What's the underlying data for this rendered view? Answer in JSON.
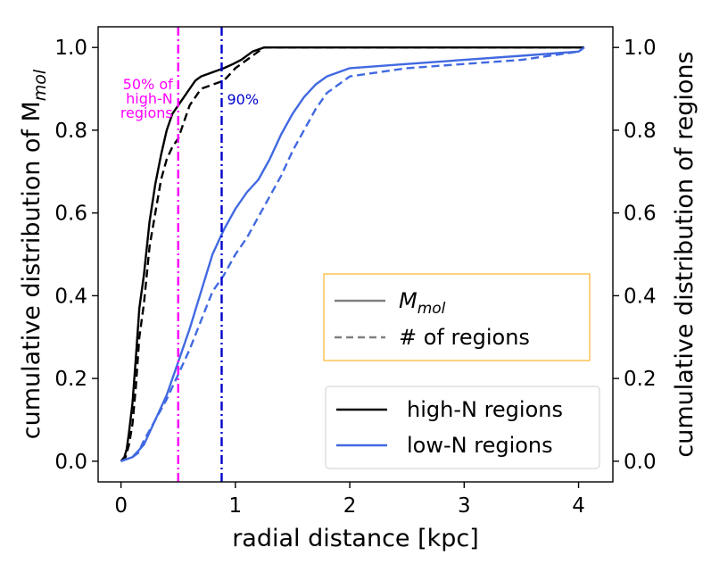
{
  "chart_data": {
    "type": "line",
    "xlabel": "radial distance [kpc]",
    "ylabel_left_text": "cumulative distribution of M",
    "ylabel_left_subscript": "mol",
    "ylabel_right": "cumulative distribution of regions",
    "xlim": [
      -0.2,
      4.3
    ],
    "ylim": [
      -0.05,
      1.05
    ],
    "x_ticks": [
      0,
      1,
      2,
      3,
      4
    ],
    "x_tick_labels": [
      "0",
      "1",
      "2",
      "3",
      "4"
    ],
    "y_ticks": [
      0.0,
      0.2,
      0.4,
      0.6,
      0.8,
      1.0
    ],
    "y_tick_labels": [
      "0.0",
      "0.2",
      "0.4",
      "0.6",
      "0.8",
      "1.0"
    ],
    "grid": false,
    "vlines": [
      {
        "x": 0.5,
        "color": "#ff00ff",
        "style": "dashdot",
        "label": "50% of\nhigh-N\nregions",
        "label_lines": [
          "50% of",
          "high-N",
          "regions"
        ]
      },
      {
        "x": 0.88,
        "color": "#0000cc",
        "style": "dashdot",
        "label": "90%",
        "label_lines": [
          "90%"
        ]
      }
    ],
    "series": [
      {
        "name": "high-N regions",
        "group": "high-N",
        "measure": "M_mol",
        "color": "#000000",
        "dash": "solid",
        "x": [
          0.0,
          0.03,
          0.05,
          0.07,
          0.1,
          0.13,
          0.16,
          0.2,
          0.25,
          0.3,
          0.35,
          0.4,
          0.45,
          0.5,
          0.55,
          0.6,
          0.65,
          0.7,
          0.8,
          0.9,
          0.98,
          1.05,
          1.15,
          1.25,
          1.3,
          1.5,
          2.0,
          3.0,
          4.0,
          4.05
        ],
        "y": [
          0.0,
          0.01,
          0.03,
          0.07,
          0.14,
          0.25,
          0.37,
          0.45,
          0.58,
          0.67,
          0.74,
          0.8,
          0.84,
          0.86,
          0.88,
          0.9,
          0.92,
          0.93,
          0.94,
          0.95,
          0.96,
          0.97,
          0.99,
          1.0,
          1.0,
          1.0,
          1.0,
          1.0,
          1.0,
          1.0
        ]
      },
      {
        "name": "",
        "group": "high-N",
        "measure": "# of regions",
        "color": "#000000",
        "dash": "dashed",
        "x": [
          0.0,
          0.04,
          0.07,
          0.1,
          0.13,
          0.16,
          0.2,
          0.25,
          0.3,
          0.35,
          0.4,
          0.45,
          0.5,
          0.55,
          0.6,
          0.65,
          0.7,
          0.8,
          0.9,
          1.0,
          1.1,
          1.2,
          1.25,
          1.3,
          1.5,
          2.0,
          3.0,
          4.0,
          4.05
        ],
        "y": [
          0.0,
          0.01,
          0.04,
          0.09,
          0.18,
          0.3,
          0.38,
          0.52,
          0.6,
          0.68,
          0.73,
          0.76,
          0.78,
          0.82,
          0.86,
          0.88,
          0.9,
          0.91,
          0.92,
          0.95,
          0.97,
          0.99,
          1.0,
          1.0,
          1.0,
          1.0,
          1.0,
          1.0,
          1.0
        ]
      },
      {
        "name": "low-N regions",
        "group": "low-N",
        "measure": "M_mol",
        "color": "#4169e1",
        "dash": "solid",
        "x": [
          0.0,
          0.1,
          0.2,
          0.3,
          0.4,
          0.5,
          0.6,
          0.7,
          0.8,
          0.9,
          1.0,
          1.1,
          1.2,
          1.3,
          1.4,
          1.5,
          1.6,
          1.7,
          1.8,
          1.9,
          2.0,
          2.5,
          3.0,
          3.5,
          4.0,
          4.05
        ],
        "y": [
          0.0,
          0.01,
          0.04,
          0.1,
          0.16,
          0.24,
          0.32,
          0.41,
          0.5,
          0.56,
          0.61,
          0.65,
          0.68,
          0.73,
          0.79,
          0.84,
          0.88,
          0.91,
          0.93,
          0.94,
          0.95,
          0.96,
          0.97,
          0.98,
          0.99,
          1.0
        ]
      },
      {
        "name": "",
        "group": "low-N",
        "measure": "# of regions",
        "color": "#4169e1",
        "dash": "dashed",
        "x": [
          0.0,
          0.1,
          0.15,
          0.2,
          0.3,
          0.4,
          0.5,
          0.6,
          0.7,
          0.8,
          0.9,
          1.0,
          1.1,
          1.2,
          1.3,
          1.4,
          1.5,
          1.6,
          1.7,
          1.8,
          1.9,
          2.0,
          2.5,
          3.0,
          3.5,
          4.0,
          4.05
        ],
        "y": [
          0.0,
          0.01,
          0.02,
          0.05,
          0.1,
          0.15,
          0.21,
          0.27,
          0.34,
          0.41,
          0.45,
          0.5,
          0.54,
          0.59,
          0.64,
          0.69,
          0.75,
          0.8,
          0.85,
          0.89,
          0.91,
          0.93,
          0.95,
          0.96,
          0.97,
          0.99,
          1.0
        ]
      }
    ],
    "legend_style": {
      "position": "center-right",
      "border_color": "#ffa500",
      "entries": [
        {
          "label_text": "M",
          "label_subscript": "mol",
          "color": "#808080",
          "dash": "solid"
        },
        {
          "label_text": "# of regions",
          "color": "#808080",
          "dash": "dashed"
        }
      ]
    },
    "legend_groups": {
      "position": "lower-right",
      "border_color": "#cccccc",
      "entries": [
        {
          "label": "high-N regions",
          "color": "#000000"
        },
        {
          "label": "low-N regions",
          "color": "#4169e1"
        }
      ]
    }
  }
}
